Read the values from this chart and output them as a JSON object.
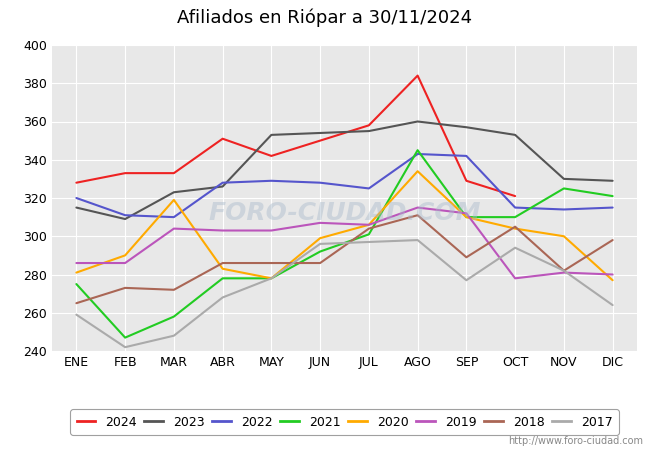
{
  "title": "Afiliados en Riópar a 30/11/2024",
  "title_bgcolor": "#5588dd",
  "ylim": [
    240,
    400
  ],
  "yticks": [
    240,
    260,
    280,
    300,
    320,
    340,
    360,
    380,
    400
  ],
  "months": [
    "ENE",
    "FEB",
    "MAR",
    "ABR",
    "MAY",
    "JUN",
    "JUL",
    "AGO",
    "SEP",
    "OCT",
    "NOV",
    "DIC"
  ],
  "watermark": "FORO-CIUDAD.COM",
  "footer": "http://www.foro-ciudad.com",
  "plot_bgcolor": "#e8e8e8",
  "grid_color": "#ffffff",
  "series": [
    {
      "year": "2024",
      "color": "#ee2222",
      "values": [
        328,
        333,
        333,
        351,
        342,
        350,
        358,
        384,
        329,
        321,
        null,
        null
      ]
    },
    {
      "year": "2023",
      "color": "#555555",
      "values": [
        315,
        309,
        323,
        326,
        353,
        354,
        355,
        360,
        357,
        353,
        330,
        329
      ]
    },
    {
      "year": "2022",
      "color": "#5555cc",
      "values": [
        320,
        311,
        310,
        328,
        329,
        328,
        325,
        343,
        342,
        315,
        314,
        315
      ]
    },
    {
      "year": "2021",
      "color": "#22cc22",
      "values": [
        275,
        247,
        258,
        278,
        278,
        292,
        301,
        345,
        310,
        310,
        325,
        321
      ]
    },
    {
      "year": "2020",
      "color": "#ffaa00",
      "values": [
        281,
        290,
        319,
        283,
        278,
        299,
        306,
        334,
        310,
        304,
        300,
        277
      ]
    },
    {
      "year": "2019",
      "color": "#bb55bb",
      "values": [
        286,
        286,
        304,
        303,
        303,
        307,
        306,
        315,
        312,
        278,
        281,
        280
      ]
    },
    {
      "year": "2018",
      "color": "#aa6655",
      "values": [
        265,
        273,
        272,
        286,
        286,
        286,
        304,
        311,
        289,
        305,
        282,
        298
      ]
    },
    {
      "year": "2017",
      "color": "#aaaaaa",
      "values": [
        259,
        242,
        248,
        268,
        278,
        296,
        297,
        298,
        277,
        294,
        282,
        264
      ]
    }
  ]
}
